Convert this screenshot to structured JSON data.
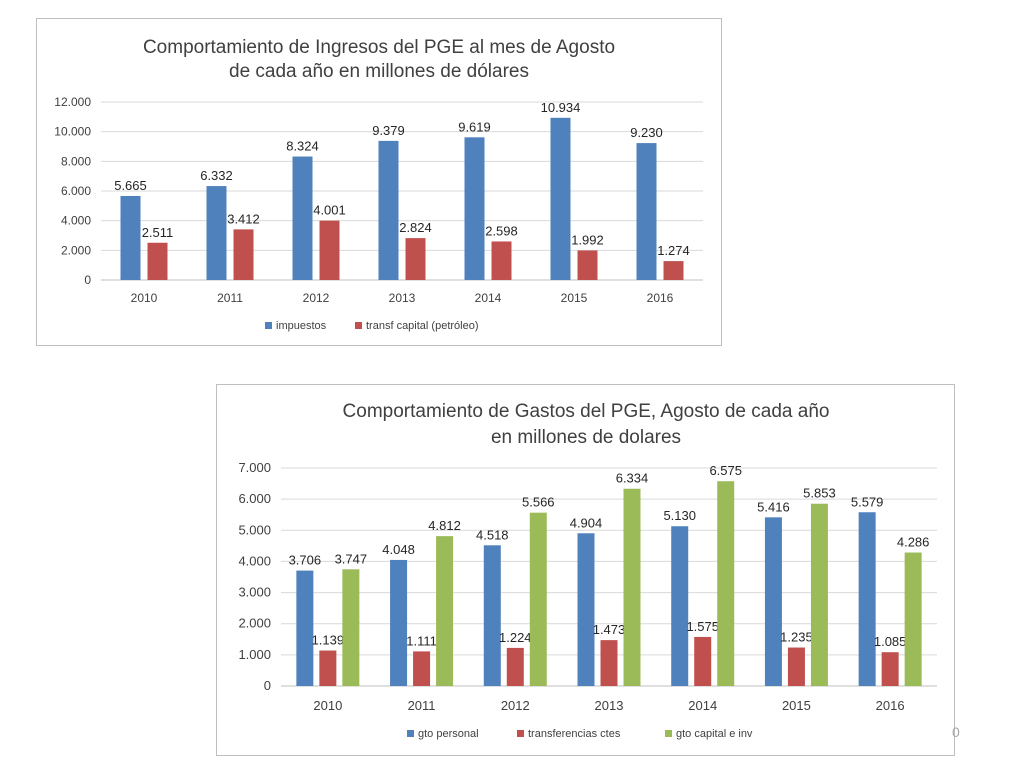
{
  "chart_data": [
    {
      "type": "bar",
      "title_lines": [
        "Comportamiento de Ingresos del PGE al mes de Agosto",
        "de cada año en millones de dólares"
      ],
      "categories": [
        "2010",
        "2011",
        "2012",
        "2013",
        "2014",
        "2015",
        "2016"
      ],
      "series": [
        {
          "name": "impuestos",
          "color": "#4f81bd",
          "values": [
            5665,
            6332,
            8324,
            9379,
            9619,
            10934,
            9230
          ],
          "labels": [
            "5.665",
            "6.332",
            "8.324",
            "9.379",
            "9.619",
            "10.934",
            "9.230"
          ]
        },
        {
          "name": "transf capital (petróleo)",
          "color": "#c0504d",
          "values": [
            2511,
            3412,
            4001,
            2824,
            2598,
            1992,
            1274
          ],
          "labels": [
            "2.511",
            "3.412",
            "4.001",
            "2.824",
            "2.598",
            "1.992",
            "1.274"
          ]
        }
      ],
      "ylim": [
        0,
        12000
      ],
      "yticks": [
        0,
        2000,
        4000,
        6000,
        8000,
        10000,
        12000
      ],
      "ytick_labels": [
        "0",
        "2.000",
        "4.000",
        "6.000",
        "8.000",
        "10.000",
        "12.000"
      ],
      "grid": true,
      "legend": "bottom"
    },
    {
      "type": "bar",
      "title_lines": [
        "Comportamiento de Gastos del PGE, Agosto de cada año",
        "en millones de dolares"
      ],
      "categories": [
        "2010",
        "2011",
        "2012",
        "2013",
        "2014",
        "2015",
        "2016"
      ],
      "series": [
        {
          "name": "gto personal",
          "color": "#4f81bd",
          "values": [
            3706,
            4048,
            4518,
            4904,
            5130,
            5416,
            5579
          ],
          "labels": [
            "3.706",
            "4.048",
            "4.518",
            "4.904",
            "5.130",
            "5.416",
            "5.579"
          ]
        },
        {
          "name": "transferencias ctes",
          "color": "#c0504d",
          "values": [
            1139,
            1111,
            1224,
            1473,
            1575,
            1235,
            1085
          ],
          "labels": [
            "1.139",
            "1.111",
            "1.224",
            "1.473",
            "1.575",
            "1.235",
            "1.085"
          ]
        },
        {
          "name": "gto capital e inv",
          "color": "#9bbb59",
          "values": [
            3747,
            4812,
            5566,
            6334,
            6575,
            5853,
            4286
          ],
          "labels": [
            "3.747",
            "4.812",
            "5.566",
            "6.334",
            "6.575",
            "5.853",
            "4.286"
          ]
        }
      ],
      "ylim": [
        0,
        7000
      ],
      "yticks": [
        0,
        1000,
        2000,
        3000,
        4000,
        5000,
        6000,
        7000
      ],
      "ytick_labels": [
        "0",
        "1.000",
        "2.000",
        "3.000",
        "4.000",
        "5.000",
        "6.000",
        "7.000"
      ],
      "grid": true,
      "legend": "bottom"
    }
  ],
  "page": {
    "number": "0"
  }
}
